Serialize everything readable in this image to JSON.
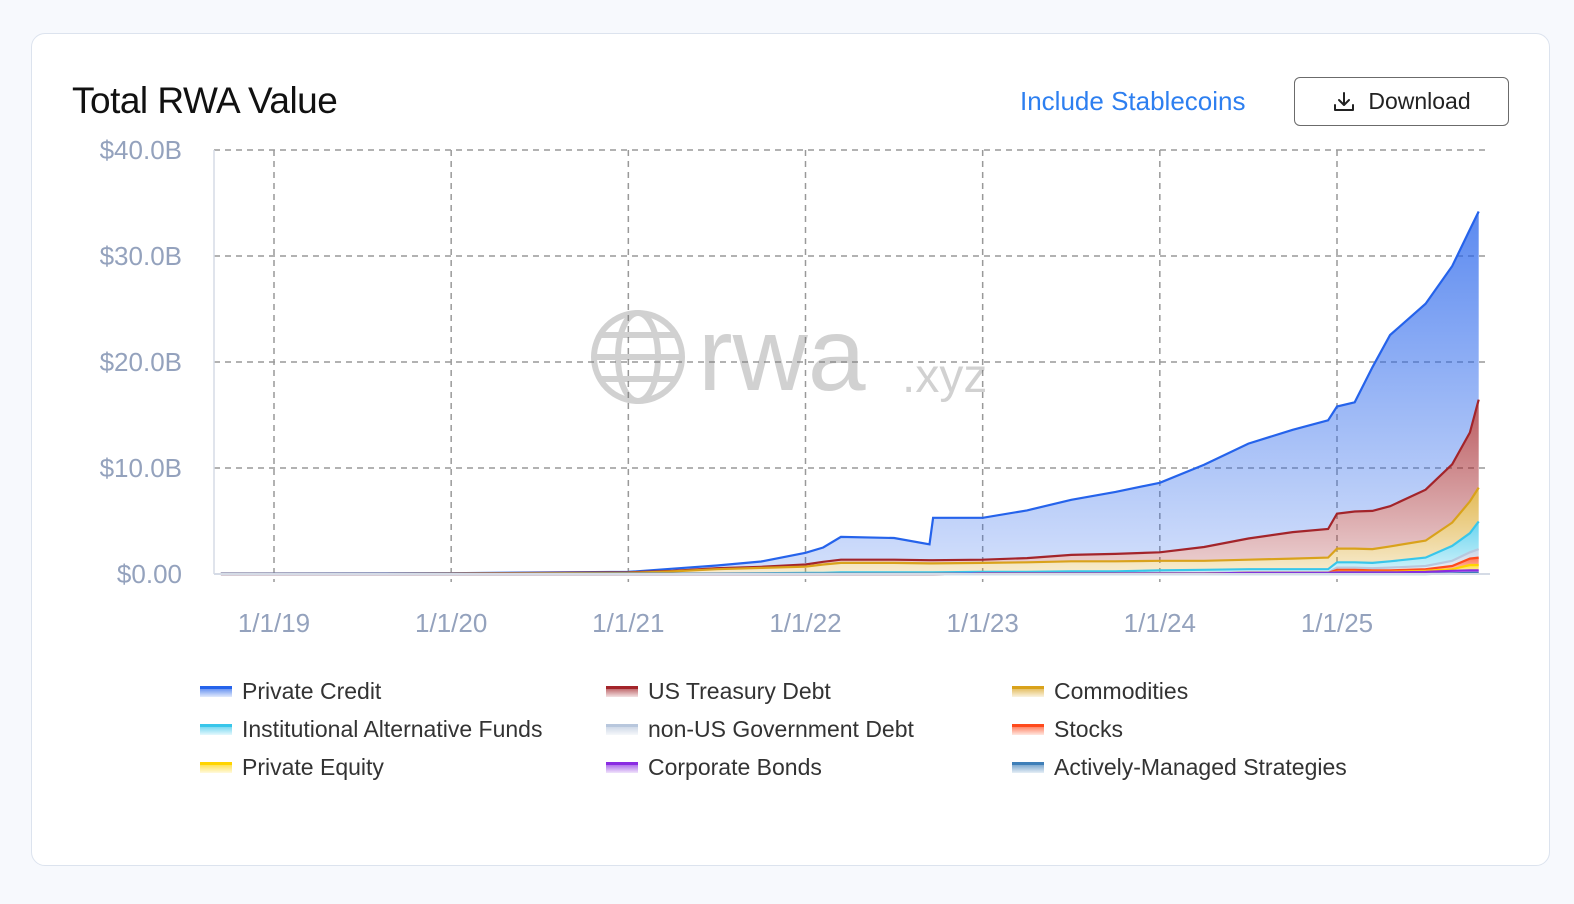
{
  "header": {
    "title": "Total RWA Value",
    "include_stablecoins": "Include Stablecoins",
    "download_label": "Download"
  },
  "watermark": {
    "text": "rwa",
    "suffix": ".xyz"
  },
  "chart_data": {
    "type": "area",
    "stacked": true,
    "title": "Total RWA Value",
    "ylim": [
      0,
      40
    ],
    "yunit": "$B",
    "yticks": [
      {
        "v": 0,
        "label": "$0.00"
      },
      {
        "v": 10,
        "label": "$10.0B"
      },
      {
        "v": 20,
        "label": "$20.0B"
      },
      {
        "v": 30,
        "label": "$30.0B"
      },
      {
        "v": 40,
        "label": "$40.0B"
      }
    ],
    "xlim": [
      2018.66,
      2025.87
    ],
    "xticks": [
      {
        "v": 2019,
        "label": "1/1/19"
      },
      {
        "v": 2020,
        "label": "1/1/20"
      },
      {
        "v": 2021,
        "label": "1/1/21"
      },
      {
        "v": 2022,
        "label": "1/1/22"
      },
      {
        "v": 2023,
        "label": "1/1/23"
      },
      {
        "v": 2024,
        "label": "1/1/24"
      },
      {
        "v": 2025,
        "label": "1/1/25"
      }
    ],
    "grid": true,
    "legend_position": "bottom",
    "x": [
      2018.7,
      2020.0,
      2021.0,
      2021.25,
      2021.5,
      2021.75,
      2022.0,
      2022.1,
      2022.2,
      2022.5,
      2022.7,
      2022.72,
      2023.0,
      2023.25,
      2023.5,
      2023.75,
      2024.0,
      2024.25,
      2024.5,
      2024.75,
      2024.95,
      2025.0,
      2025.1,
      2025.2,
      2025.3,
      2025.5,
      2025.65,
      2025.75,
      2025.8
    ],
    "stack_order_bottom_up": [
      "Actively-Managed Strategies",
      "Corporate Bonds",
      "Private Equity",
      "Stocks",
      "non-US Government Debt",
      "Institutional Alternative Funds",
      "Commodities",
      "US Treasury Debt",
      "Private Credit"
    ],
    "series": [
      {
        "name": "Private Credit",
        "color": "#2563eb",
        "values": [
          0.02,
          0.03,
          0.05,
          0.2,
          0.25,
          0.5,
          1.1,
          1.35,
          2.15,
          2.05,
          1.5,
          4.0,
          3.95,
          4.5,
          5.2,
          5.85,
          6.55,
          7.75,
          8.95,
          9.65,
          10.25,
          10.1,
          10.3,
          13.55,
          16.15,
          17.55,
          18.7,
          19.15,
          17.75
        ]
      },
      {
        "name": "US Treasury Debt",
        "color": "#a3242a",
        "values": [
          0,
          0,
          0.05,
          0.05,
          0.1,
          0.1,
          0.2,
          0.25,
          0.3,
          0.3,
          0.3,
          0.3,
          0.3,
          0.4,
          0.6,
          0.7,
          0.8,
          1.3,
          2.0,
          2.5,
          2.7,
          3.3,
          3.5,
          3.6,
          3.8,
          4.8,
          5.5,
          6.5,
          8.3
        ]
      },
      {
        "name": "Commodities",
        "color": "#d9a21b",
        "values": [
          0.01,
          0.03,
          0.05,
          0.2,
          0.4,
          0.5,
          0.6,
          0.8,
          0.9,
          0.9,
          0.85,
          0.85,
          0.85,
          0.9,
          0.95,
          0.95,
          0.9,
          0.85,
          0.9,
          1.0,
          1.1,
          1.3,
          1.3,
          1.3,
          1.4,
          1.6,
          2.2,
          3.0,
          3.2
        ]
      },
      {
        "name": "Institutional Alternative Funds",
        "color": "#38c6ea",
        "values": [
          0.02,
          0.02,
          0.05,
          0.05,
          0.05,
          0.08,
          0.1,
          0.1,
          0.15,
          0.15,
          0.15,
          0.15,
          0.15,
          0.15,
          0.2,
          0.2,
          0.25,
          0.3,
          0.3,
          0.3,
          0.3,
          0.5,
          0.5,
          0.5,
          0.6,
          0.8,
          1.4,
          1.8,
          2.6
        ]
      },
      {
        "name": "non-US Government Debt",
        "color": "#b8c7dd",
        "values": [
          0,
          0,
          0,
          0,
          0,
          0,
          0,
          0,
          0,
          0,
          0,
          0,
          0,
          0,
          0,
          0,
          0.05,
          0.05,
          0.05,
          0.05,
          0.05,
          0.2,
          0.2,
          0.2,
          0.25,
          0.3,
          0.5,
          0.6,
          0.8
        ]
      },
      {
        "name": "Stocks",
        "color": "#ff4a1c",
        "values": [
          0,
          0,
          0,
          0,
          0,
          0,
          0,
          0,
          0,
          0,
          0,
          0,
          0,
          0,
          0,
          0,
          0,
          0,
          0,
          0,
          0,
          0.2,
          0.2,
          0.15,
          0.15,
          0.15,
          0.3,
          0.6,
          0.7
        ]
      },
      {
        "name": "Private Equity",
        "color": "#ffd400",
        "values": [
          0,
          0,
          0,
          0,
          0,
          0,
          0,
          0,
          0,
          0,
          0,
          0,
          0,
          0,
          0,
          0,
          0,
          0,
          0,
          0,
          0,
          0.05,
          0.05,
          0.05,
          0.05,
          0.1,
          0.15,
          0.5,
          0.5
        ]
      },
      {
        "name": "Corporate Bonds",
        "color": "#8a2be2",
        "values": [
          0,
          0,
          0,
          0,
          0,
          0,
          0,
          0,
          0,
          0,
          0,
          0,
          0.05,
          0.05,
          0.05,
          0.05,
          0.05,
          0.05,
          0.1,
          0.1,
          0.1,
          0.15,
          0.15,
          0.15,
          0.15,
          0.2,
          0.25,
          0.25,
          0.25
        ]
      },
      {
        "name": "Actively-Managed Strategies",
        "color": "#3f7fb8",
        "values": [
          0,
          0,
          0,
          0,
          0,
          0,
          0,
          0,
          0,
          0,
          0,
          0,
          0,
          0,
          0,
          0,
          0,
          0,
          0,
          0,
          0,
          0,
          0,
          0,
          0,
          0,
          0.05,
          0.1,
          0.1
        ]
      }
    ]
  }
}
